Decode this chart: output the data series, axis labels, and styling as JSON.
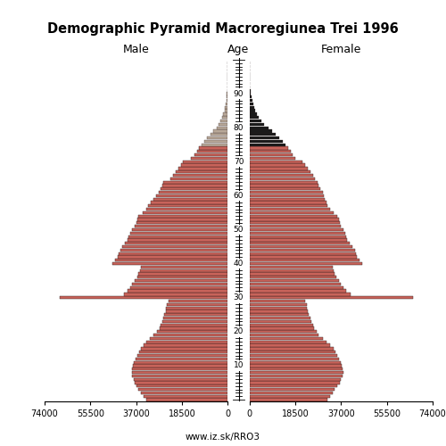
{
  "title": "Demographic Pyramid Macroregiunea Trei 1996",
  "male_label": "Male",
  "female_label": "Female",
  "age_label": "Age",
  "footer": "www.iz.sk/RRO3",
  "xlim": 74000,
  "ages": [
    0,
    1,
    2,
    3,
    4,
    5,
    6,
    7,
    8,
    9,
    10,
    11,
    12,
    13,
    14,
    15,
    16,
    17,
    18,
    19,
    20,
    21,
    22,
    23,
    24,
    25,
    26,
    27,
    28,
    29,
    30,
    31,
    32,
    33,
    34,
    35,
    36,
    37,
    38,
    39,
    40,
    41,
    42,
    43,
    44,
    45,
    46,
    47,
    48,
    49,
    50,
    51,
    52,
    53,
    54,
    55,
    56,
    57,
    58,
    59,
    60,
    61,
    62,
    63,
    64,
    65,
    66,
    67,
    68,
    69,
    70,
    71,
    72,
    73,
    74,
    75,
    76,
    77,
    78,
    79,
    80,
    81,
    82,
    83,
    84,
    85,
    86,
    87,
    88,
    89,
    90,
    91,
    92,
    93,
    94,
    95,
    96,
    97,
    98,
    99
  ],
  "male": [
    33000,
    34000,
    35000,
    36000,
    37000,
    37500,
    38000,
    38500,
    38800,
    38500,
    38200,
    37800,
    37200,
    36500,
    35800,
    35000,
    34000,
    33000,
    31500,
    30000,
    28500,
    27500,
    27000,
    26500,
    26000,
    25500,
    25000,
    24800,
    24500,
    24000,
    68000,
    42000,
    40500,
    39500,
    38500,
    37500,
    36500,
    36000,
    35500,
    35000,
    46500,
    45500,
    44500,
    44000,
    43500,
    42500,
    41500,
    40500,
    40000,
    39500,
    38500,
    37500,
    37000,
    36500,
    36000,
    34500,
    33000,
    32000,
    31000,
    30000,
    29000,
    28000,
    27000,
    26500,
    26000,
    23000,
    22000,
    21000,
    20000,
    19000,
    18000,
    15000,
    13500,
    12500,
    11500,
    10500,
    9500,
    8500,
    7000,
    5800,
    4500,
    3500,
    2800,
    2200,
    1700,
    1300,
    1000,
    700,
    500,
    350,
    250,
    170,
    120,
    80,
    55,
    35,
    22,
    14,
    8,
    4
  ],
  "female": [
    31500,
    32500,
    33500,
    34500,
    35500,
    36500,
    37000,
    37500,
    37800,
    37500,
    37200,
    36800,
    36200,
    35500,
    34800,
    34000,
    32500,
    31000,
    29500,
    28000,
    27000,
    26000,
    25500,
    25000,
    24500,
    24000,
    23500,
    23200,
    23000,
    22500,
    66000,
    41000,
    39000,
    38000,
    37000,
    36000,
    35000,
    34500,
    34000,
    33500,
    45500,
    44500,
    43500,
    43000,
    42500,
    41500,
    40500,
    39500,
    39000,
    38500,
    38000,
    37000,
    36500,
    36000,
    35500,
    34000,
    32500,
    31500,
    31000,
    30500,
    30000,
    29500,
    28500,
    28000,
    27500,
    26500,
    25500,
    24500,
    23500,
    22500,
    21500,
    18500,
    17500,
    16500,
    15500,
    14500,
    13500,
    12000,
    10500,
    9000,
    7500,
    6000,
    4800,
    3800,
    3000,
    2400,
    1900,
    1400,
    1000,
    700,
    500,
    330,
    220,
    145,
    95,
    60,
    38,
    22,
    12,
    5
  ],
  "bar_color_main": "#c8635a",
  "bar_color_old_male": "#b8a898",
  "bar_color_old_female": "#1a1a1a",
  "bar_edge_color": "#2a1a1a",
  "old_threshold": 75,
  "age_ticks": [
    10,
    20,
    30,
    40,
    50,
    60,
    70,
    80,
    90
  ],
  "xticks": [
    0,
    18500,
    37000,
    55500,
    74000
  ],
  "background": "#ffffff"
}
